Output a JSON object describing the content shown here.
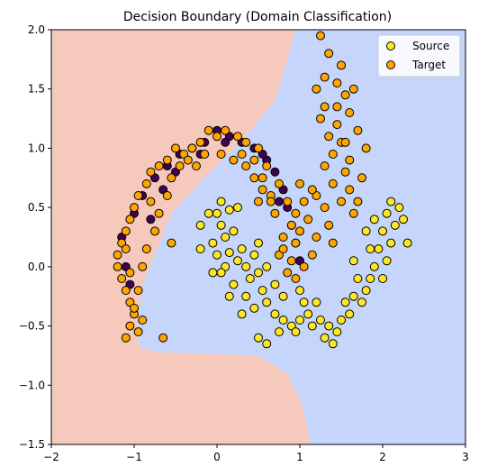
{
  "chart_data": {
    "type": "scatter",
    "title": "Decision Boundary (Domain Classification)",
    "xlabel": "",
    "ylabel": "",
    "xlim": [
      -2,
      3
    ],
    "ylim": [
      -1.5,
      2.0
    ],
    "x_ticks": [
      -2,
      -1,
      0,
      1,
      2,
      3
    ],
    "x_tick_labels": [
      "−2",
      "−1",
      "0",
      "1",
      "2",
      "3"
    ],
    "y_ticks": [
      -1.5,
      -1.0,
      -0.5,
      0.0,
      0.5,
      1.0,
      1.5,
      2.0
    ],
    "y_tick_labels": [
      "−1.5",
      "−1.0",
      "−0.5",
      "0.0",
      "0.5",
      "1.0",
      "1.5",
      "2.0"
    ],
    "grid": false,
    "legend_position": "top-right",
    "colors": {
      "region_source": "#c5d5fb",
      "region_target": "#f6c9bd",
      "source": "#fde725",
      "target": "#ffa500",
      "target_hidden": "#440154",
      "edge": "#000000"
    },
    "decision_boundary": [
      [
        0.95,
        2.0
      ],
      [
        0.7,
        1.4
      ],
      [
        0.35,
        1.1
      ],
      [
        -0.15,
        0.75
      ],
      [
        -0.55,
        0.45
      ],
      [
        -0.75,
        0.1
      ],
      [
        -0.9,
        -0.15
      ],
      [
        -0.95,
        -0.45
      ],
      [
        -0.95,
        -0.68
      ],
      [
        -0.7,
        -0.72
      ],
      [
        0.5,
        -0.75
      ],
      [
        0.85,
        -0.9
      ],
      [
        1.05,
        -1.2
      ],
      [
        1.12,
        -1.5
      ]
    ],
    "series": [
      {
        "name": "Source",
        "points": [
          [
            0.05,
            0.55
          ],
          [
            0.0,
            0.45
          ],
          [
            -0.1,
            0.45
          ],
          [
            -0.2,
            0.35
          ],
          [
            0.15,
            0.48
          ],
          [
            0.25,
            0.5
          ],
          [
            0.05,
            0.35
          ],
          [
            0.1,
            0.25
          ],
          [
            -0.05,
            0.2
          ],
          [
            0.2,
            0.3
          ],
          [
            0.0,
            0.1
          ],
          [
            -0.2,
            0.15
          ],
          [
            0.15,
            0.12
          ],
          [
            0.3,
            0.15
          ],
          [
            0.25,
            0.05
          ],
          [
            0.1,
            0.0
          ],
          [
            0.35,
            0.0
          ],
          [
            0.4,
            -0.1
          ],
          [
            0.2,
            -0.15
          ],
          [
            0.5,
            -0.05
          ],
          [
            0.55,
            -0.2
          ],
          [
            0.35,
            -0.25
          ],
          [
            0.6,
            -0.3
          ],
          [
            0.45,
            -0.35
          ],
          [
            0.7,
            -0.4
          ],
          [
            0.8,
            -0.45
          ],
          [
            0.9,
            -0.5
          ],
          [
            1.0,
            -0.45
          ],
          [
            1.1,
            -0.4
          ],
          [
            1.15,
            -0.5
          ],
          [
            1.05,
            -0.3
          ],
          [
            1.2,
            -0.3
          ],
          [
            1.25,
            -0.45
          ],
          [
            1.35,
            -0.5
          ],
          [
            1.45,
            -0.55
          ],
          [
            1.5,
            -0.45
          ],
          [
            1.6,
            -0.4
          ],
          [
            1.55,
            -0.3
          ],
          [
            1.65,
            -0.25
          ],
          [
            1.75,
            -0.3
          ],
          [
            1.8,
            -0.2
          ],
          [
            1.7,
            -0.1
          ],
          [
            1.85,
            -0.1
          ],
          [
            1.9,
            0.0
          ],
          [
            2.0,
            -0.1
          ],
          [
            2.05,
            0.05
          ],
          [
            1.95,
            0.15
          ],
          [
            2.1,
            0.2
          ],
          [
            2.0,
            0.3
          ],
          [
            2.15,
            0.35
          ],
          [
            2.05,
            0.45
          ],
          [
            2.2,
            0.5
          ],
          [
            2.25,
            0.4
          ],
          [
            2.1,
            0.55
          ],
          [
            1.9,
            0.4
          ],
          [
            1.8,
            0.3
          ],
          [
            1.85,
            0.15
          ],
          [
            1.65,
            0.05
          ],
          [
            2.3,
            0.2
          ],
          [
            0.5,
            -0.6
          ],
          [
            0.6,
            -0.65
          ],
          [
            1.4,
            -0.65
          ],
          [
            1.3,
            -0.6
          ],
          [
            0.75,
            -0.55
          ],
          [
            0.95,
            -0.55
          ],
          [
            0.3,
            -0.4
          ],
          [
            0.15,
            -0.25
          ],
          [
            0.05,
            -0.05
          ],
          [
            -0.05,
            -0.05
          ],
          [
            0.45,
            0.1
          ],
          [
            0.6,
            0.0
          ],
          [
            0.5,
            0.2
          ],
          [
            0.7,
            -0.15
          ],
          [
            0.8,
            -0.25
          ],
          [
            1.0,
            -0.2
          ]
        ]
      },
      {
        "name": "Target",
        "points": [
          [
            1.25,
            1.95
          ],
          [
            1.35,
            1.8
          ],
          [
            1.5,
            1.7
          ],
          [
            1.3,
            1.6
          ],
          [
            1.45,
            1.55
          ],
          [
            1.2,
            1.5
          ],
          [
            1.55,
            1.45
          ],
          [
            1.3,
            1.35
          ],
          [
            1.6,
            1.3
          ],
          [
            1.25,
            1.25
          ],
          [
            1.45,
            1.2
          ],
          [
            1.7,
            1.15
          ],
          [
            1.35,
            1.1
          ],
          [
            1.5,
            1.05
          ],
          [
            1.8,
            1.0
          ],
          [
            1.4,
            0.95
          ],
          [
            1.6,
            0.9
          ],
          [
            1.3,
            0.85
          ],
          [
            1.55,
            0.8
          ],
          [
            1.75,
            0.75
          ],
          [
            1.4,
            0.7
          ],
          [
            1.6,
            0.65
          ],
          [
            1.2,
            0.6
          ],
          [
            1.5,
            0.55
          ],
          [
            1.3,
            0.5
          ],
          [
            1.65,
            0.45
          ],
          [
            1.1,
            0.4
          ],
          [
            1.35,
            0.35
          ],
          [
            1.0,
            0.3
          ],
          [
            1.2,
            0.25
          ],
          [
            0.95,
            0.2
          ],
          [
            1.15,
            0.1
          ],
          [
            0.9,
            0.05
          ],
          [
            1.05,
            0.0
          ],
          [
            0.85,
            -0.05
          ],
          [
            0.95,
            -0.1
          ],
          [
            0.75,
            0.1
          ],
          [
            0.8,
            0.25
          ],
          [
            0.9,
            0.35
          ],
          [
            0.7,
            0.45
          ],
          [
            0.85,
            0.55
          ],
          [
            0.65,
            0.6
          ],
          [
            0.75,
            0.7
          ],
          [
            0.55,
            0.75
          ],
          [
            0.6,
            0.85
          ],
          [
            0.45,
            0.9
          ],
          [
            0.5,
            1.0
          ],
          [
            0.35,
            1.05
          ],
          [
            0.25,
            1.1
          ],
          [
            0.1,
            1.15
          ],
          [
            0.0,
            1.1
          ],
          [
            -0.1,
            1.15
          ],
          [
            -0.2,
            1.05
          ],
          [
            -0.3,
            1.0
          ],
          [
            -0.4,
            0.95
          ],
          [
            -0.5,
            1.0
          ],
          [
            -0.6,
            0.9
          ],
          [
            -0.7,
            0.85
          ],
          [
            -0.8,
            0.8
          ],
          [
            -0.85,
            0.7
          ],
          [
            -0.95,
            0.6
          ],
          [
            -1.0,
            0.5
          ],
          [
            -1.05,
            0.4
          ],
          [
            -1.1,
            0.3
          ],
          [
            -1.15,
            0.2
          ],
          [
            -1.2,
            0.1
          ],
          [
            -1.2,
            0.0
          ],
          [
            -1.15,
            -0.1
          ],
          [
            -1.1,
            -0.2
          ],
          [
            -1.05,
            -0.3
          ],
          [
            -1.0,
            -0.4
          ],
          [
            -1.05,
            -0.5
          ],
          [
            -0.95,
            -0.55
          ],
          [
            -1.1,
            -0.6
          ],
          [
            -0.9,
            -0.45
          ],
          [
            -0.95,
            -0.2
          ],
          [
            -0.9,
            0.0
          ],
          [
            -0.85,
            0.15
          ],
          [
            -0.75,
            0.3
          ],
          [
            -0.7,
            0.45
          ],
          [
            -0.6,
            0.6
          ],
          [
            -0.55,
            0.75
          ],
          [
            -0.45,
            0.85
          ],
          [
            -0.35,
            0.9
          ],
          [
            -0.15,
            0.95
          ],
          [
            0.05,
            0.95
          ],
          [
            0.2,
            0.9
          ],
          [
            0.35,
            0.85
          ],
          [
            0.55,
            0.65
          ],
          [
            0.65,
            0.55
          ],
          [
            0.95,
            0.45
          ],
          [
            1.05,
            0.55
          ],
          [
            1.15,
            0.65
          ],
          [
            0.5,
            0.55
          ],
          [
            -0.65,
            -0.6
          ],
          [
            -1.05,
            -0.05
          ],
          [
            1.65,
            1.5
          ],
          [
            1.45,
            1.35
          ],
          [
            1.55,
            1.05
          ],
          [
            1.7,
            0.55
          ],
          [
            1.4,
            0.2
          ],
          [
            1.0,
            0.7
          ],
          [
            0.3,
            0.95
          ],
          [
            -0.25,
            0.85
          ],
          [
            -0.8,
            0.55
          ],
          [
            -1.1,
            0.15
          ],
          [
            -1.0,
            -0.35
          ],
          [
            -0.55,
            0.2
          ],
          [
            0.45,
            0.75
          ],
          [
            0.8,
            0.15
          ]
        ]
      }
    ],
    "target_hidden_points": [
      [
        -1.15,
        0.25
      ],
      [
        -1.0,
        0.45
      ],
      [
        -0.9,
        0.6
      ],
      [
        -0.75,
        0.75
      ],
      [
        -0.6,
        0.85
      ],
      [
        -0.45,
        0.95
      ],
      [
        -0.3,
        1.0
      ],
      [
        -0.15,
        1.05
      ],
      [
        0.0,
        1.15
      ],
      [
        0.15,
        1.1
      ],
      [
        0.3,
        1.05
      ],
      [
        0.45,
        1.0
      ],
      [
        0.6,
        0.9
      ],
      [
        0.7,
        0.8
      ],
      [
        0.8,
        0.65
      ],
      [
        0.85,
        0.5
      ],
      [
        0.9,
        0.35
      ],
      [
        0.95,
        0.2
      ],
      [
        1.0,
        0.05
      ],
      [
        -1.1,
        0.0
      ],
      [
        -1.05,
        -0.15
      ],
      [
        -0.8,
        0.4
      ],
      [
        -0.65,
        0.65
      ],
      [
        0.55,
        0.95
      ],
      [
        0.75,
        0.55
      ],
      [
        -0.2,
        0.95
      ],
      [
        0.1,
        1.05
      ],
      [
        -0.5,
        0.8
      ]
    ],
    "legend": {
      "source_label": "Source",
      "target_label": "Target"
    }
  }
}
